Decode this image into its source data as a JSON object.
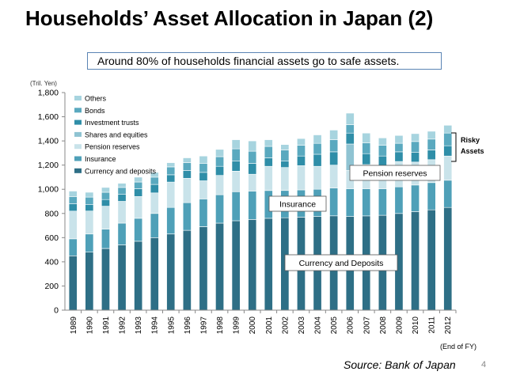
{
  "title": "Households’ Asset Allocation in Japan (2)",
  "callout": "Around 80% of households financial assets go to safe assets.",
  "source": "Source: Bank of Japan",
  "page_number": "4",
  "colors": {
    "currency": "#2e6f86",
    "insurance": "#4fa0b8",
    "pension": "#c9e3ea",
    "shares": "#8fc3d2",
    "investment": "#2f8ea8",
    "bonds": "#5aa9bf",
    "others": "#a7d4df"
  },
  "chart_data": {
    "type": "bar",
    "stacked": true,
    "unit_label": "(Tril. Yen)",
    "footnote": "(End of FY)",
    "ylim": [
      0,
      1800
    ],
    "yticks": [
      0,
      200,
      400,
      600,
      800,
      1000,
      1200,
      1400,
      1600,
      1800
    ],
    "grid": false,
    "legend_position": "top-left",
    "categories": [
      "1989",
      "1990",
      "1991",
      "1992",
      "1993",
      "1994",
      "1995",
      "1996",
      "1997",
      "1998",
      "1999",
      "2000",
      "2001",
      "2002",
      "2003",
      "2004",
      "2005",
      "2006",
      "2007",
      "2008",
      "2009",
      "2010",
      "2011",
      "2012"
    ],
    "series": [
      {
        "name": "Currency and deposits",
        "color_key": "currency",
        "values": [
          450,
          480,
          510,
          540,
          570,
          600,
          630,
          660,
          690,
          720,
          740,
          750,
          760,
          765,
          770,
          775,
          780,
          775,
          780,
          785,
          800,
          815,
          830,
          850
        ]
      },
      {
        "name": "Insurance",
        "color_key": "insurance",
        "values": [
          140,
          150,
          160,
          180,
          190,
          200,
          220,
          230,
          230,
          235,
          240,
          235,
          230,
          225,
          225,
          225,
          230,
          230,
          225,
          220,
          220,
          220,
          225,
          225
        ]
      },
      {
        "name": "Pension reserves",
        "color_key": "pension",
        "values": [
          230,
          190,
          190,
          180,
          180,
          170,
          210,
          200,
          150,
          160,
          170,
          140,
          200,
          190,
          200,
          190,
          190,
          150,
          200,
          190,
          210,
          190,
          190,
          200
        ]
      },
      {
        "name": "Shares and equities",
        "color_key": "shares",
        "values": [
          0,
          0,
          0,
          0,
          0,
          0,
          0,
          0,
          0,
          0,
          0,
          0,
          0,
          0,
          0,
          0,
          0,
          220,
          0,
          0,
          0,
          0,
          0,
          0
        ]
      },
      {
        "name": "Investment trusts",
        "color_key": "investment",
        "values": [
          60,
          55,
          55,
          60,
          65,
          70,
          60,
          65,
          70,
          75,
          85,
          90,
          70,
          55,
          80,
          100,
          110,
          90,
          90,
          80,
          80,
          80,
          80,
          85
        ]
      },
      {
        "name": "Bonds",
        "color_key": "bonds",
        "values": [
          60,
          60,
          60,
          55,
          55,
          60,
          65,
          65,
          75,
          80,
          100,
          100,
          95,
          90,
          90,
          90,
          100,
          70,
          90,
          90,
          70,
          90,
          90,
          105
        ]
      },
      {
        "name": "Others",
        "color_key": "others",
        "values": [
          45,
          40,
          40,
          35,
          40,
          40,
          35,
          40,
          60,
          60,
          75,
          85,
          55,
          45,
          55,
          70,
          80,
          95,
          80,
          60,
          65,
          65,
          65,
          65
        ]
      }
    ],
    "annotations": [
      {
        "text": "Currency and Deposits"
      },
      {
        "text": "Insurance"
      },
      {
        "text": "Pension reserves"
      },
      {
        "text": "Risky Assets"
      }
    ]
  }
}
